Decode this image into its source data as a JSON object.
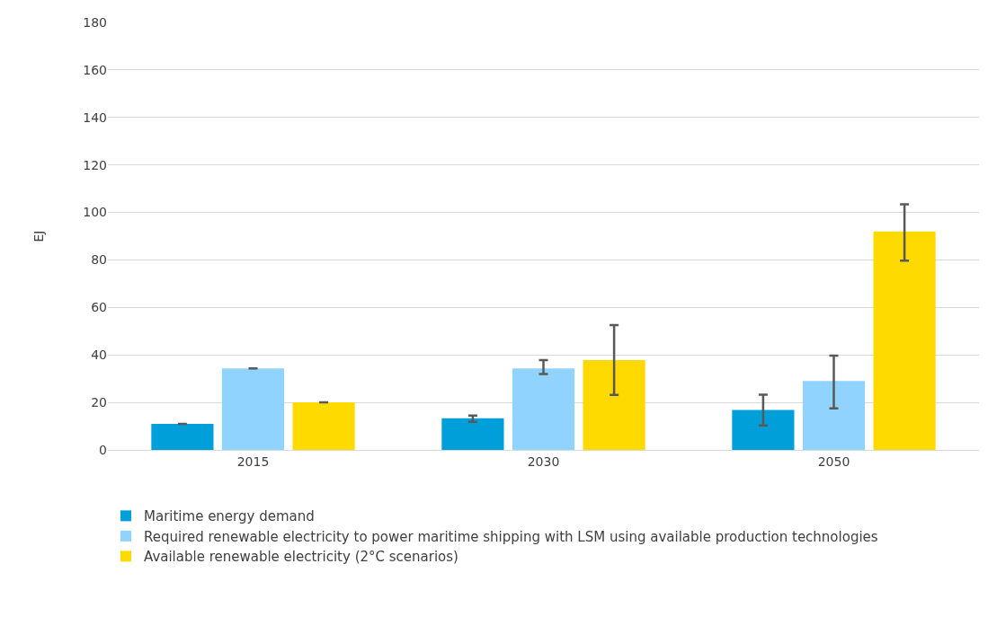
{
  "chart_data": {
    "type": "bar",
    "ylabel": "EJ",
    "categories": [
      "2015",
      "2030",
      "2050"
    ],
    "series": [
      {
        "name": "Maritime energy demand",
        "color": "#009fda",
        "values": [
          11,
          13.3,
          16.8
        ],
        "errors": [
          null,
          [
            11.8,
            14.5
          ],
          [
            10.3,
            23.3
          ]
        ]
      },
      {
        "name": "Required renewable electricity to power maritime shipping with LSM using available production technologies",
        "color": "#8fd3fe",
        "values": [
          34.3,
          34.3,
          29
        ],
        "errors": [
          null,
          [
            32,
            37.8
          ],
          [
            17.5,
            39.7
          ]
        ]
      },
      {
        "name": "Available renewable electricity (2°C scenarios)",
        "color": "#ffda00",
        "values": [
          20,
          37.8,
          92
        ],
        "errors": [
          null,
          [
            23.2,
            52.6
          ],
          [
            79.7,
            103.4
          ]
        ]
      }
    ],
    "ylim": [
      0,
      180
    ],
    "yticks": [
      0,
      20,
      40,
      60,
      80,
      100,
      120,
      140,
      160,
      180
    ],
    "grid": "y",
    "legend": "bottom"
  }
}
